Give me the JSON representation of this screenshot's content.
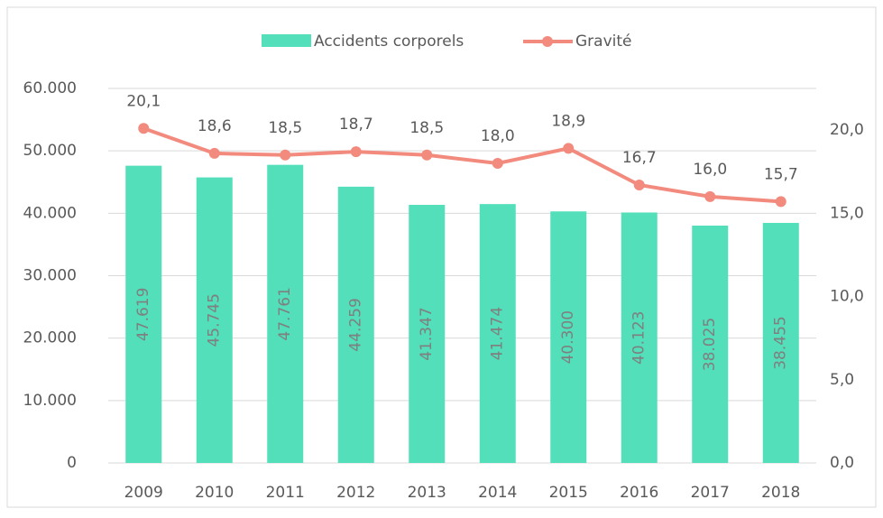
{
  "chart_data": {
    "type": "bar_line",
    "categories": [
      "2009",
      "2010",
      "2011",
      "2012",
      "2013",
      "2014",
      "2015",
      "2016",
      "2017",
      "2018"
    ],
    "series": [
      {
        "name": "Accidents corporels",
        "type": "bar",
        "color": "#52dfba",
        "values": [
          47619,
          45745,
          47761,
          44259,
          41347,
          41474,
          40300,
          40123,
          38025,
          38455
        ],
        "value_labels": [
          "47.619",
          "45.745",
          "47.761",
          "44.259",
          "41.347",
          "41.474",
          "40.300",
          "40.123",
          "38.025",
          "38.455"
        ]
      },
      {
        "name": "Gravité",
        "type": "line",
        "axis": "y2",
        "color": "#f28a7e",
        "values": [
          20.1,
          18.6,
          18.5,
          18.7,
          18.5,
          18.0,
          18.9,
          16.7,
          16.0,
          15.7
        ],
        "value_labels": [
          "20,1",
          "18,6",
          "18,5",
          "18,7",
          "18,5",
          "18,0",
          "18,9",
          "16,7",
          "16,0",
          "15,7"
        ]
      }
    ],
    "ylim": [
      0,
      60000
    ],
    "yticks": [
      0,
      {
        "value": 10000,
        "label": "10.000"
      },
      {
        "value": 20000,
        "label": "20.000"
      },
      {
        "value": 30000,
        "label": "30.000"
      },
      {
        "value": 40000,
        "label": "40.000"
      },
      {
        "value": 50000,
        "label": "50.000"
      },
      {
        "value": 60000,
        "label": "60.000"
      }
    ],
    "y2lim": [
      0,
      22.5
    ],
    "y2ticks": [
      {
        "value": 0,
        "label": "0,0"
      },
      {
        "value": 5,
        "label": "5,0"
      },
      {
        "value": 10,
        "label": "10,0"
      },
      {
        "value": 15,
        "label": "15,0"
      },
      {
        "value": 20,
        "label": "20,0"
      }
    ],
    "grid": true,
    "legend": "top"
  }
}
